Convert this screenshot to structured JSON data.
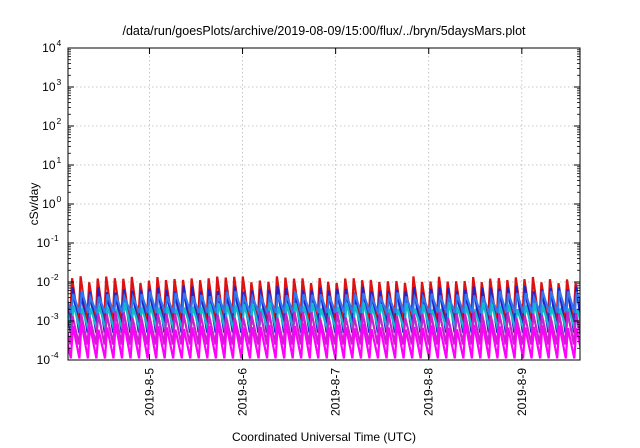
{
  "chart_data": {
    "type": "line",
    "title": "/data/run/goesPlots/archive/2019-08-09/15:00/flux/../bryn/5daysMars.plot",
    "xlabel": "Coordinated Universal Time (UTC)",
    "ylabel": "cSv/day",
    "y_scale": "log",
    "ylim": [
      0.0001,
      10000
    ],
    "y_ticks": [
      {
        "base": "10",
        "exp": "-4"
      },
      {
        "base": "10",
        "exp": "-3"
      },
      {
        "base": "10",
        "exp": "-2"
      },
      {
        "base": "10",
        "exp": "-1"
      },
      {
        "base": "10",
        "exp": "0"
      },
      {
        "base": "10",
        "exp": "1"
      },
      {
        "base": "10",
        "exp": "2"
      },
      {
        "base": "10",
        "exp": "3"
      },
      {
        "base": "10",
        "exp": "4"
      }
    ],
    "xlim": [
      "2019-08-04 03:00",
      "2019-08-09 15:00"
    ],
    "x_ticks": [
      "2019-8-5",
      "2019-8-6",
      "2019-8-7",
      "2019-8-8",
      "2019-8-9"
    ],
    "grid": true,
    "legend": "none",
    "period_hours": 2.2,
    "series": [
      {
        "color": "#dd1111",
        "peak": 0.014,
        "trough": 0.0009,
        "phase": 0.05
      },
      {
        "color": "#2222cc",
        "peak": 0.008,
        "trough": 0.0005,
        "phase": 0.12
      },
      {
        "color": "#3377ee",
        "peak": 0.006,
        "trough": 0.0016,
        "phase": 0.18
      },
      {
        "color": "#11bbcc",
        "peak": 0.003,
        "trough": 0.0006,
        "phase": 0.22
      },
      {
        "color": "#cc22cc",
        "peak": 0.0018,
        "trough": 0.00025,
        "phase": 0.1
      },
      {
        "color": "#ff00ff",
        "peak": 0.0009,
        "trough": 0.00011,
        "phase": 0.15
      }
    ]
  }
}
